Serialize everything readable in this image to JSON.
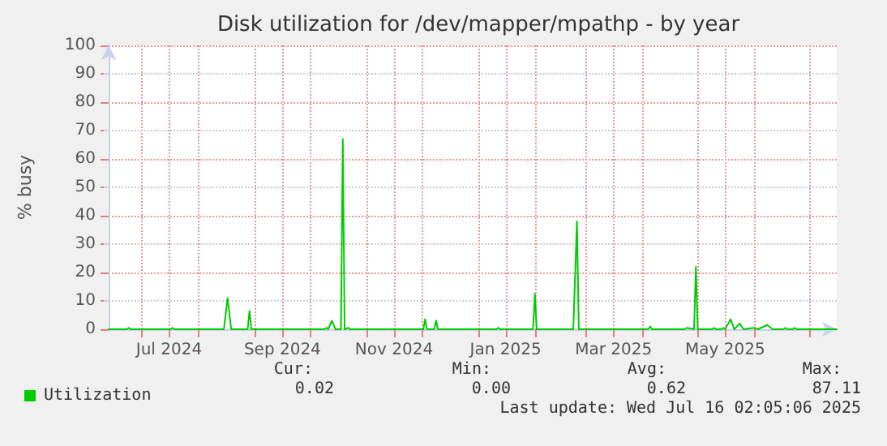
{
  "chart_data": {
    "type": "line",
    "title": "Disk utilization for /dev/mapper/mpathp - by year",
    "ylabel": "% busy",
    "xlim": [
      "2024-06-13",
      "2025-07-16"
    ],
    "xticks": [
      {
        "value": "2024-07-01",
        "label": null
      },
      {
        "value": "2024-07-16",
        "label": "Jul 2024"
      },
      {
        "value": "2024-08-01",
        "label": null
      },
      {
        "value": "2024-09-01",
        "label": null
      },
      {
        "value": "2024-09-16",
        "label": "Sep 2024"
      },
      {
        "value": "2024-10-01",
        "label": null
      },
      {
        "value": "2024-11-01",
        "label": null
      },
      {
        "value": "2024-11-16",
        "label": "Nov 2024"
      },
      {
        "value": "2024-12-01",
        "label": null
      },
      {
        "value": "2025-01-01",
        "label": null
      },
      {
        "value": "2025-01-16",
        "label": "Jan 2025"
      },
      {
        "value": "2025-02-01",
        "label": null
      },
      {
        "value": "2025-03-01",
        "label": null
      },
      {
        "value": "2025-03-16",
        "label": "Mar 2025"
      },
      {
        "value": "2025-04-01",
        "label": null
      },
      {
        "value": "2025-05-01",
        "label": null
      },
      {
        "value": "2025-05-16",
        "label": "May 2025"
      },
      {
        "value": "2025-06-01",
        "label": null
      },
      {
        "value": "2025-07-01",
        "label": null
      }
    ],
    "ylim": [
      0,
      100
    ],
    "yticks": [
      0,
      10,
      20,
      30,
      40,
      50,
      60,
      70,
      80,
      90,
      100
    ],
    "grid": true,
    "legend": "bottom left",
    "marker": "none",
    "line_style": "solid",
    "series": [
      {
        "name": "Utilization",
        "color": "#00cc00",
        "x": [
          "2024-06-13",
          "2024-06-23",
          "2024-06-24",
          "2024-06-25",
          "2024-07-17",
          "2024-07-18",
          "2024-07-19",
          "2024-08-15",
          "2024-08-17",
          "2024-08-19",
          "2024-08-28",
          "2024-08-29",
          "2024-08-30",
          "2024-10-09",
          "2024-10-10",
          "2024-10-11",
          "2024-10-13",
          "2024-10-15",
          "2024-10-18",
          "2024-10-19",
          "2024-10-20",
          "2024-10-22",
          "2024-10-23",
          "2024-12-02",
          "2024-12-03",
          "2024-12-04",
          "2024-12-08",
          "2024-12-09",
          "2024-12-10",
          "2025-01-11",
          "2025-01-12",
          "2025-01-13",
          "2025-01-31",
          "2025-02-01",
          "2025-02-02",
          "2025-02-22",
          "2025-02-24",
          "2025-02-25",
          "2025-04-04",
          "2025-04-05",
          "2025-04-06",
          "2025-04-24",
          "2025-04-25",
          "2025-04-29",
          "2025-04-30",
          "2025-05-01",
          "2025-05-09",
          "2025-05-10",
          "2025-05-11",
          "2025-05-14",
          "2025-05-15",
          "2025-05-16",
          "2025-05-19",
          "2025-05-21",
          "2025-05-24",
          "2025-05-26",
          "2025-06-01",
          "2025-06-03",
          "2025-06-08",
          "2025-06-11",
          "2025-06-17",
          "2025-06-18",
          "2025-06-19",
          "2025-06-22",
          "2025-06-23",
          "2025-06-24",
          "2025-07-16"
        ],
        "values": [
          0,
          0,
          0.5,
          0,
          0,
          0.5,
          0,
          0,
          11,
          0,
          0,
          6.5,
          0,
          0,
          0.5,
          0,
          3,
          0,
          0,
          67,
          0,
          0.5,
          0,
          0,
          3.5,
          0,
          0,
          3,
          0,
          0,
          0.5,
          0,
          0,
          12.5,
          0,
          0,
          38,
          0,
          0,
          1,
          0,
          0,
          0.5,
          0,
          22,
          0,
          0,
          0.5,
          0,
          0,
          0.5,
          0,
          3.5,
          0,
          2,
          0,
          0.5,
          0,
          1.5,
          0,
          0,
          0.5,
          0,
          0,
          0.5,
          0,
          0
        ]
      }
    ],
    "annotations": [
      "Cur:",
      "0.02",
      "Min:",
      "0.00",
      "Avg:",
      "0.62",
      "Max:",
      "87.11",
      "Last update: Wed Jul 16 02:05:06 2025"
    ]
  }
}
